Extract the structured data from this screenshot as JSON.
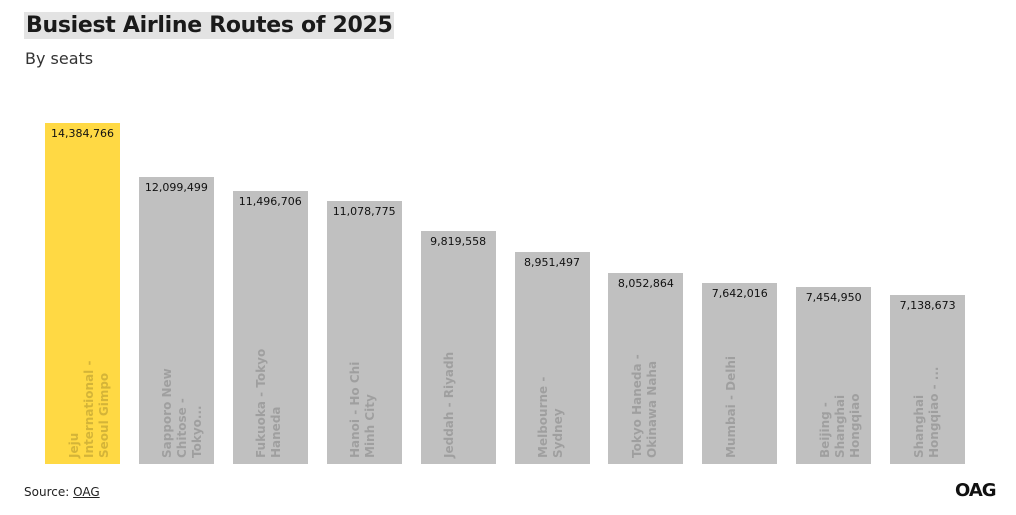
{
  "chart_data": {
    "type": "bar",
    "title": "Busiest Airline Routes of 2025",
    "subtitle": "By seats",
    "categories": [
      "Jeju International - Seoul Gimpo",
      "Sapporo New Chitose - Tokyo...",
      "Fukuoka - Tokyo Haneda",
      "Hanoi - Ho Chi Minh City",
      "Jeddah - Riyadh",
      "Melbourne - Sydney",
      "Tokyo Haneda - Okinawa Naha",
      "Mumbai - Delhi",
      "Beijing - Shanghai Hongqiao",
      "Shanghai Hongqiao - ..."
    ],
    "values": [
      14384766,
      12099499,
      11496706,
      11078775,
      9819558,
      8951497,
      8052864,
      7642016,
      7454950,
      7138673
    ],
    "value_labels": [
      "14,384,766",
      "12,099,499",
      "11,496,706",
      "11,078,775",
      "9,819,558",
      "8,951,497",
      "8,052,864",
      "7,642,016",
      "7,454,950",
      "7,138,673"
    ],
    "colors": [
      "#ffd944",
      "#c0c0c0",
      "#c0c0c0",
      "#c0c0c0",
      "#c0c0c0",
      "#c0c0c0",
      "#c0c0c0",
      "#c0c0c0",
      "#c0c0c0",
      "#c0c0c0"
    ]
  },
  "source_label": "Source:",
  "source_link": "OAG",
  "logo": "OAG"
}
